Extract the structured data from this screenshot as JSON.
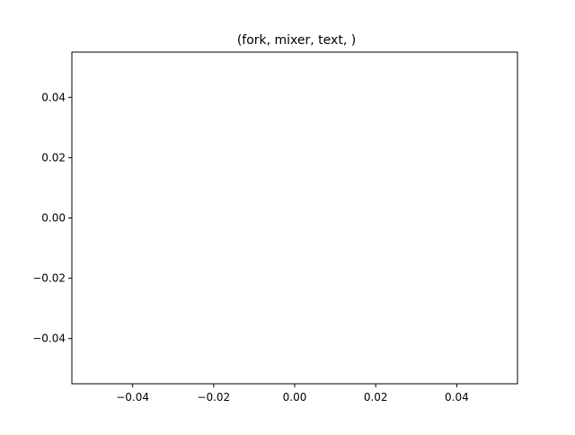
{
  "chart_data": {
    "type": "line",
    "title": "(fork, mixer, text, )",
    "xlabel": "",
    "ylabel": "",
    "xlim": [
      -0.055,
      0.055
    ],
    "ylim": [
      -0.055,
      0.055
    ],
    "x_ticks": [
      -0.04,
      -0.02,
      0.0,
      0.02,
      0.04
    ],
    "y_ticks": [
      -0.04,
      -0.02,
      0.0,
      0.02,
      0.04
    ],
    "x_tick_labels": [
      "−0.04",
      "−0.02",
      "0.00",
      "0.02",
      "0.04"
    ],
    "y_tick_labels": [
      "−0.04",
      "−0.02",
      "0.00",
      "0.02",
      "0.04"
    ],
    "grid": false,
    "series": []
  }
}
